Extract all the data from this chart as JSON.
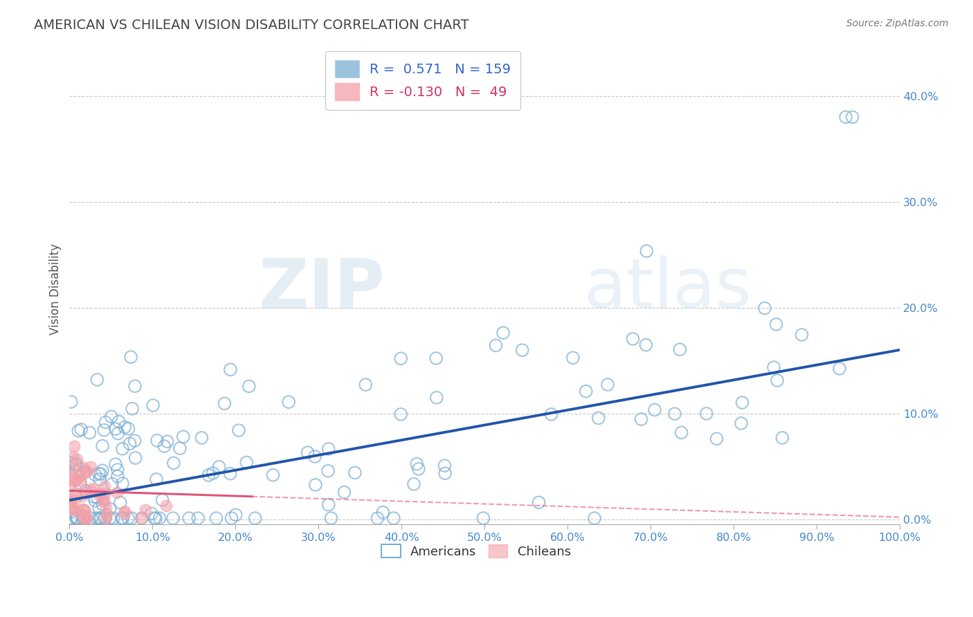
{
  "title": "AMERICAN VS CHILEAN VISION DISABILITY CORRELATION CHART",
  "source": "Source: ZipAtlas.com",
  "ylabel": "Vision Disability",
  "xlim": [
    0,
    1.0
  ],
  "ylim": [
    -0.005,
    0.44
  ],
  "xticks": [
    0.0,
    0.1,
    0.2,
    0.3,
    0.4,
    0.5,
    0.6,
    0.7,
    0.8,
    0.9,
    1.0
  ],
  "xticklabels": [
    "0.0%",
    "10.0%",
    "20.0%",
    "30.0%",
    "40.0%",
    "50.0%",
    "60.0%",
    "70.0%",
    "80.0%",
    "90.0%",
    "100.0%"
  ],
  "yticks": [
    0.0,
    0.1,
    0.2,
    0.3,
    0.4
  ],
  "yticklabels": [
    "0.0%",
    "10.0%",
    "20.0%",
    "30.0%",
    "40.0%"
  ],
  "blue_color": "#7BAFD4",
  "pink_color": "#F4A0A8",
  "blue_line_color": "#2255AA",
  "pink_line_color": "#DD5577",
  "blue_R": 0.571,
  "blue_N": 159,
  "pink_R": -0.13,
  "pink_N": 49,
  "watermark_zip": "ZIP",
  "watermark_atlas": "atlas",
  "grid_color": "#BBBBBB",
  "bg_color": "#FFFFFF",
  "title_color": "#444444",
  "axis_tick_color": "#4488CC",
  "legend_text_blue_color": "#3366CC",
  "legend_text_pink_color": "#CC3366"
}
